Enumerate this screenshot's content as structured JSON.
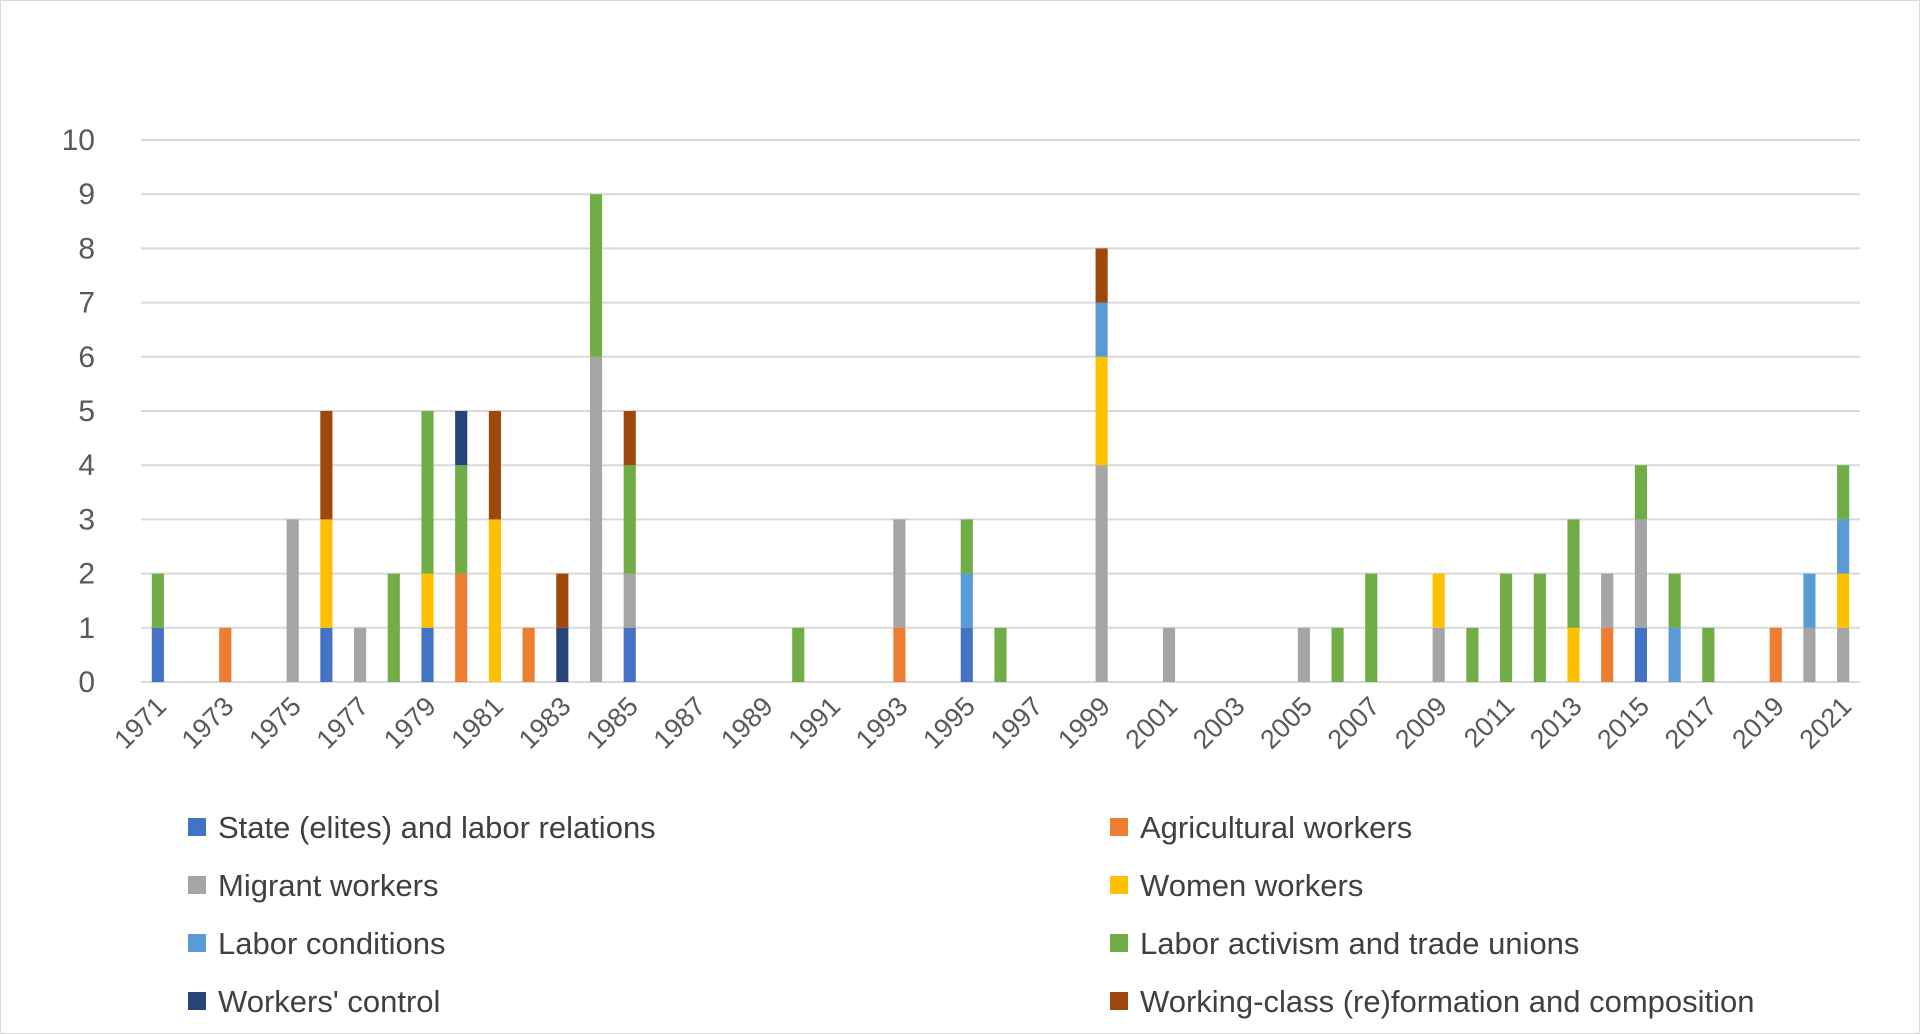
{
  "chart_data": {
    "type": "bar",
    "stacked": true,
    "title": "",
    "xlabel": "",
    "ylabel": "",
    "ylim": [
      0,
      10
    ],
    "yticks": [
      0,
      1,
      2,
      3,
      4,
      5,
      6,
      7,
      8,
      9,
      10
    ],
    "grid": true,
    "legend_position": "bottom",
    "categories": [
      "1971",
      "1972",
      "1973",
      "1974",
      "1975",
      "1976",
      "1977",
      "1978",
      "1979",
      "1980",
      "1981",
      "1982",
      "1983",
      "1984",
      "1985",
      "1986",
      "1987",
      "1988",
      "1989",
      "1990",
      "1991",
      "1992",
      "1993",
      "1994",
      "1995",
      "1996",
      "1997",
      "1998",
      "1999",
      "2000",
      "2001",
      "2002",
      "2003",
      "2004",
      "2005",
      "2006",
      "2007",
      "2008",
      "2009",
      "2010",
      "2011",
      "2012",
      "2013",
      "2014",
      "2015",
      "2016",
      "2017",
      "2018",
      "2019",
      "2020",
      "2021"
    ],
    "category_labels": [
      "1971",
      "",
      "1973",
      "",
      "1975",
      "",
      "1977",
      "",
      "1979",
      "",
      "1981",
      "",
      "1983",
      "",
      "1985",
      "",
      "1987",
      "",
      "1989",
      "",
      "1991",
      "",
      "1993",
      "",
      "1995",
      "",
      "1997",
      "",
      "1999",
      "",
      "2001",
      "",
      "2003",
      "",
      "2005",
      "",
      "2007",
      "",
      "2009",
      "",
      "2011",
      "",
      "2013",
      "",
      "2015",
      "",
      "2017",
      "",
      "2019",
      "",
      "2021"
    ],
    "series": [
      {
        "name": "State (elites) and labor relations",
        "color": "#4472C4",
        "values": [
          1,
          0,
          0,
          0,
          0,
          1,
          0,
          0,
          1,
          0,
          0,
          0,
          0,
          0,
          1,
          0,
          0,
          0,
          0,
          0,
          0,
          0,
          0,
          0,
          1,
          0,
          0,
          0,
          0,
          0,
          0,
          0,
          0,
          0,
          0,
          0,
          0,
          0,
          0,
          0,
          0,
          0,
          0,
          0,
          1,
          0,
          0,
          0,
          0,
          0,
          0
        ]
      },
      {
        "name": "Agricultural workers",
        "color": "#ED7D31",
        "values": [
          0,
          0,
          1,
          0,
          0,
          0,
          0,
          0,
          0,
          2,
          0,
          1,
          0,
          0,
          0,
          0,
          0,
          0,
          0,
          0,
          0,
          0,
          1,
          0,
          0,
          0,
          0,
          0,
          0,
          0,
          0,
          0,
          0,
          0,
          0,
          0,
          0,
          0,
          0,
          0,
          0,
          0,
          0,
          1,
          0,
          0,
          0,
          0,
          1,
          0,
          0
        ]
      },
      {
        "name": "Migrant workers",
        "color": "#A5A5A5",
        "values": [
          0,
          0,
          0,
          0,
          3,
          0,
          1,
          0,
          0,
          0,
          0,
          0,
          0,
          6,
          1,
          0,
          0,
          0,
          0,
          0,
          0,
          0,
          2,
          0,
          0,
          0,
          0,
          0,
          4,
          0,
          1,
          0,
          0,
          0,
          1,
          0,
          0,
          0,
          1,
          0,
          0,
          0,
          0,
          1,
          2,
          0,
          0,
          0,
          0,
          1,
          1
        ]
      },
      {
        "name": "Women workers",
        "color": "#FFC000",
        "values": [
          0,
          0,
          0,
          0,
          0,
          2,
          0,
          0,
          1,
          0,
          3,
          0,
          0,
          0,
          0,
          0,
          0,
          0,
          0,
          0,
          0,
          0,
          0,
          0,
          0,
          0,
          0,
          0,
          2,
          0,
          0,
          0,
          0,
          0,
          0,
          0,
          0,
          0,
          1,
          0,
          0,
          0,
          1,
          0,
          0,
          0,
          0,
          0,
          0,
          0,
          1
        ]
      },
      {
        "name": "Labor conditions",
        "color": "#5B9BD5",
        "values": [
          0,
          0,
          0,
          0,
          0,
          0,
          0,
          0,
          0,
          0,
          0,
          0,
          0,
          0,
          0,
          0,
          0,
          0,
          0,
          0,
          0,
          0,
          0,
          0,
          1,
          0,
          0,
          0,
          1,
          0,
          0,
          0,
          0,
          0,
          0,
          0,
          0,
          0,
          0,
          0,
          0,
          0,
          0,
          0,
          0,
          1,
          0,
          0,
          0,
          1,
          1
        ]
      },
      {
        "name": "Labor activism and trade unions",
        "color": "#70AD47",
        "values": [
          1,
          0,
          0,
          0,
          0,
          0,
          0,
          2,
          3,
          2,
          0,
          0,
          0,
          3,
          2,
          0,
          0,
          0,
          0,
          1,
          0,
          0,
          0,
          0,
          1,
          1,
          0,
          0,
          0,
          0,
          0,
          0,
          0,
          0,
          0,
          1,
          2,
          0,
          0,
          1,
          2,
          2,
          2,
          0,
          1,
          1,
          1,
          0,
          0,
          0,
          1
        ]
      },
      {
        "name": "Workers' control",
        "color": "#264478",
        "values": [
          0,
          0,
          0,
          0,
          0,
          0,
          0,
          0,
          0,
          1,
          0,
          0,
          1,
          0,
          0,
          0,
          0,
          0,
          0,
          0,
          0,
          0,
          0,
          0,
          0,
          0,
          0,
          0,
          0,
          0,
          0,
          0,
          0,
          0,
          0,
          0,
          0,
          0,
          0,
          0,
          0,
          0,
          0,
          0,
          0,
          0,
          0,
          0,
          0,
          0,
          0
        ]
      },
      {
        "name": "Working-class (re)formation and composition",
        "color": "#9E480E",
        "values": [
          0,
          0,
          0,
          0,
          0,
          2,
          0,
          0,
          0,
          0,
          2,
          0,
          1,
          0,
          1,
          0,
          0,
          0,
          0,
          0,
          0,
          0,
          0,
          0,
          0,
          0,
          0,
          0,
          1,
          0,
          0,
          0,
          0,
          0,
          0,
          0,
          0,
          0,
          0,
          0,
          0,
          0,
          0,
          0,
          0,
          0,
          0,
          0,
          0,
          0,
          0
        ]
      }
    ]
  }
}
